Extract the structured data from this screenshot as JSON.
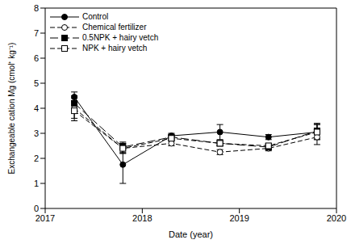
{
  "chart_data": {
    "type": "line",
    "x_label": "Date (year)",
    "y_label": "Exchangeable cation Mg (cmol⁺ kg⁻¹)",
    "x": [
      2017.3,
      2017.8,
      2018.3,
      2018.8,
      2019.3,
      2019.8
    ],
    "xlim": [
      2017,
      2020
    ],
    "xticks": [
      2017,
      2018,
      2019,
      2020
    ],
    "ylim": [
      0,
      8
    ],
    "yticks": [
      0,
      1,
      2,
      3,
      4,
      5,
      6,
      7,
      8
    ],
    "grid": false,
    "legend": "upper left",
    "series": [
      {
        "name": "Control",
        "color": "#000000",
        "marker": "circle",
        "line_style": "solid",
        "values": [
          4.45,
          1.75,
          2.9,
          3.05,
          2.85,
          3.05
        ],
        "error": [
          0.2,
          0.75,
          0.1,
          0.3,
          0.1,
          0.3
        ]
      },
      {
        "name": "Chemical fertilizer",
        "color": "#000000",
        "marker": "open_circle",
        "line_style": "dashed",
        "values": [
          4.0,
          2.4,
          2.6,
          2.25,
          2.4,
          2.85
        ],
        "error": [
          0.4,
          0.2,
          0.1,
          0.1,
          0.1,
          0.3
        ]
      },
      {
        "name": "0.5NPK + hairy vetch",
        "color": "#000000",
        "marker": "square",
        "line_style": "long_dashed",
        "values": [
          4.2,
          2.45,
          2.85,
          2.6,
          2.45,
          3.1
        ],
        "error": [
          0.3,
          0.2,
          0.1,
          0.1,
          0.1,
          0.3
        ]
      },
      {
        "name": "NPK + hairy vetch",
        "color": "#000000",
        "marker": "open_square",
        "line_style": "dashed",
        "values": [
          3.9,
          2.4,
          2.8,
          2.6,
          2.5,
          3.05
        ],
        "error": [
          0.4,
          0.2,
          0.1,
          0.1,
          0.1,
          0.3
        ]
      }
    ]
  }
}
